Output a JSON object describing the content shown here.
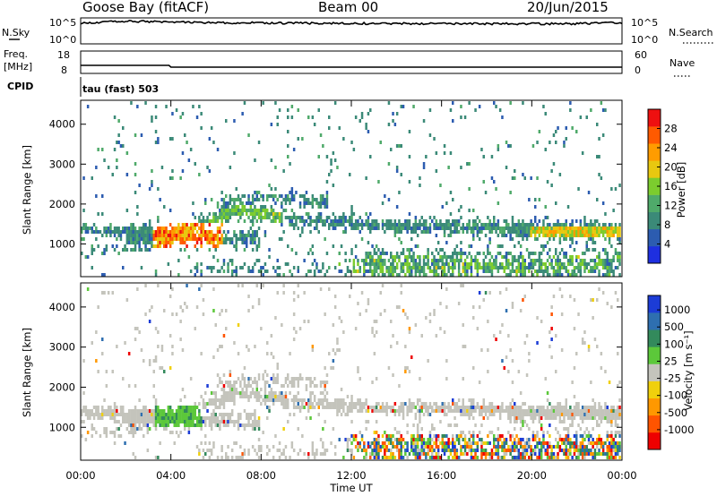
{
  "header": {
    "station": "Goose Bay (fitACF)",
    "beam": "Beam 00",
    "date": "20/Jun/2015"
  },
  "panels": {
    "nsky_label": "N.Sky",
    "nsearch_label": "N.Search",
    "nsky_ticks": [
      "10^5",
      "10^0"
    ],
    "nsearch_ticks": [
      "10^5",
      "10^0"
    ],
    "freq_label_line1": "Freq.",
    "freq_label_line2": "[MHz]",
    "freq_ticks": [
      "18",
      "8"
    ],
    "nave_label": "Nave",
    "nave_ticks": [
      "60",
      "0"
    ],
    "cpid_label": "CPID",
    "cpid_value": "tau (fast) 503"
  },
  "colors": {
    "power_scale": [
      "#1e2fe0",
      "#2c5cb0",
      "#3b8a78",
      "#4faa6a",
      "#7ccc2e",
      "#e8c810",
      "#ff9c00",
      "#ff5a00",
      "#ee1010"
    ],
    "velocity_scale": [
      "#1c3cd6",
      "#2e6fb0",
      "#338a5c",
      "#5cc83a",
      "#c4c4bc",
      "#f0d00c",
      "#ff9800",
      "#ff5400",
      "#ee0000"
    ],
    "background": "#ffffff"
  },
  "chart_data": [
    {
      "type": "line",
      "name": "N.Sky / N.Search",
      "x": [
        "00:00",
        "02:00",
        "04:00",
        "06:00",
        "08:00",
        "10:00",
        "12:00",
        "14:00",
        "16:00",
        "18:00",
        "20:00",
        "22:00",
        "24:00"
      ],
      "values": [
        10000,
        30000,
        20000,
        15000,
        14000,
        12000,
        11000,
        10000,
        10000,
        9500,
        9000,
        10000,
        15000
      ],
      "yscale": "log"
    },
    {
      "type": "line",
      "name": "Freq. / Nave",
      "x": [
        "00:00",
        "03:55",
        "04:00",
        "24:00"
      ],
      "values": [
        11.5,
        11.5,
        10.6,
        10.6
      ],
      "ylim": [
        8,
        18
      ]
    },
    {
      "type": "heatmap",
      "name": "Power",
      "xlabel": "",
      "ylabel": "Slant Range [km]",
      "x_ticks": [
        "00:00",
        "04:00",
        "08:00",
        "12:00",
        "16:00",
        "20:00",
        "00:00"
      ],
      "y_ticks": [
        "1000",
        "2000",
        "3000",
        "4000"
      ],
      "xlim": [
        0,
        24
      ],
      "ylim": [
        180,
        4600
      ],
      "colorbar_label": "Power [dB]",
      "colorbar_ticks": [
        "4",
        "8",
        "12",
        "16",
        "20",
        "24",
        "28"
      ],
      "colorbar_range": [
        0,
        32
      ]
    },
    {
      "type": "heatmap",
      "name": "Velocity",
      "xlabel": "Time UT",
      "ylabel": "Slant Range [km]",
      "x_ticks": [
        "00:00",
        "04:00",
        "08:00",
        "12:00",
        "16:00",
        "20:00",
        "00:00"
      ],
      "y_ticks": [
        "1000",
        "2000",
        "3000",
        "4000"
      ],
      "xlim": [
        0,
        24
      ],
      "ylim": [
        180,
        4600
      ],
      "colorbar_label": "Velocity [m s⁻¹]",
      "colorbar_ticks": [
        "1000",
        "500",
        "100",
        "25",
        "-25",
        "-100",
        "-500",
        "-1000"
      ]
    }
  ]
}
